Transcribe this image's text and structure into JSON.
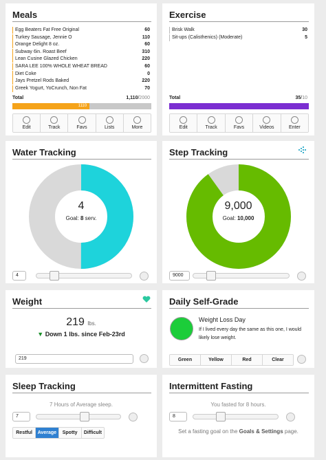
{
  "meals": {
    "title": "Meals",
    "items": [
      {
        "name": "Egg Beaters Fat Free Original",
        "calories": 60
      },
      {
        "name": "Turkey Sausage, Jennie O",
        "calories": 110
      },
      {
        "name": "Orange Delight 8 oz.",
        "calories": 60
      },
      {
        "name": "Subway 6in. Roast Beef",
        "calories": 310
      },
      {
        "name": "Lean Cusine Glazed Chicken",
        "calories": 220
      },
      {
        "name": "SARA LEE 100% WHOLE WHEAT BREAD",
        "calories": 60
      },
      {
        "name": "Diet Coke",
        "calories": 0
      },
      {
        "name": "Jays Pretzel Rods Baked",
        "calories": 220
      },
      {
        "name": "Greek Yogurt, YoCrunch, Non Fat",
        "calories": 70
      }
    ],
    "total_label": "Total",
    "total": 1110,
    "total_printed": "1,110",
    "goal": 2000,
    "buttons": [
      "Edit",
      "Track",
      "Favs",
      "Lists",
      "More"
    ]
  },
  "exercise": {
    "title": "Exercise",
    "items": [
      {
        "name": "Brisk Walk",
        "minutes": 30
      },
      {
        "name": "Sit-ups (Calisthenics) (Moderate)",
        "minutes": 5
      }
    ],
    "total_label": "Total",
    "total": 35,
    "goal": 10,
    "buttons": [
      "Edit",
      "Track",
      "Favs",
      "Videos",
      "Enter"
    ]
  },
  "water": {
    "title": "Water Tracking",
    "value": 4,
    "goal_label": "Goal:",
    "goal": 8,
    "unit": "serv."
  },
  "steps": {
    "title": "Step Tracking",
    "value": 9000,
    "value_printed": "9,000",
    "goal_label": "Goal:",
    "goal": 10000,
    "goal_printed": "10,000"
  },
  "weight": {
    "title": "Weight",
    "value": 219,
    "unit": "lbs.",
    "change": "Down 1 lbs. since Feb-23rd"
  },
  "self_grade": {
    "title": "Daily Self-Grade",
    "grade": "Weight Loss Day",
    "description": "If I lived every day the same as this one, I would likely lose weight.",
    "buttons": [
      "Green",
      "Yellow",
      "Red",
      "Clear"
    ]
  },
  "sleep": {
    "title": "Sleep Tracking",
    "summary": "7 Hours of Average sleep.",
    "hours": 7,
    "buttons": [
      "Restful",
      "Average",
      "Spotty",
      "Difficult"
    ],
    "selected_index": 1
  },
  "fasting": {
    "title": "Intermittent Fasting",
    "summary": "You fasted for 8 hours.",
    "hours": 8,
    "note_before": "Set a fasting goal on the ",
    "note_link": "Goals & Settings",
    "note_after": " page."
  }
}
